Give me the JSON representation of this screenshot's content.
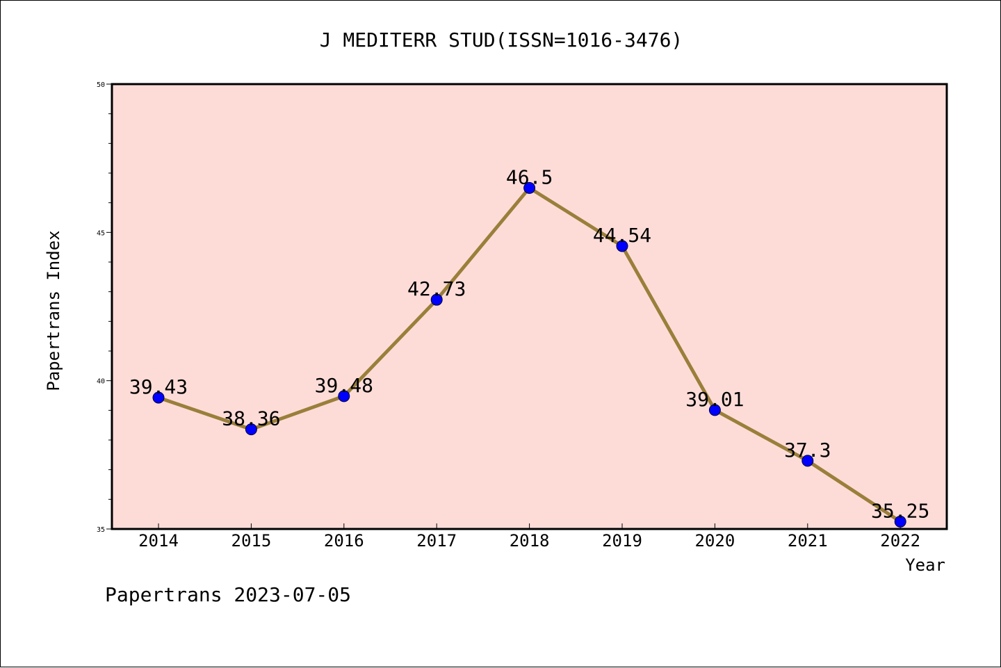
{
  "chart_data": {
    "type": "line",
    "title": "J MEDITERR STUD(ISSN=1016-3476)",
    "xlabel": "Year",
    "ylabel": "Papertrans Index",
    "footer": "Papertrans 2023-07-05",
    "categories": [
      "2014",
      "2015",
      "2016",
      "2017",
      "2018",
      "2019",
      "2020",
      "2021",
      "2022"
    ],
    "series": [
      {
        "values": [
          39.43,
          38.36,
          39.48,
          42.73,
          46.5,
          44.54,
          39.01,
          37.3,
          35.25
        ],
        "labels": [
          "39.43",
          "38.36",
          "39.48",
          "42.73",
          "46.5",
          "44.54",
          "39.01",
          "37.3",
          "35.25"
        ]
      }
    ],
    "ylim": [
      35,
      50
    ],
    "y_ticks": [
      "35",
      "40",
      "45",
      "50"
    ],
    "grid": false,
    "colors": {
      "plot_background": "#fddcd8",
      "line": "#9a7f3a",
      "marker": "#0000ff"
    }
  }
}
